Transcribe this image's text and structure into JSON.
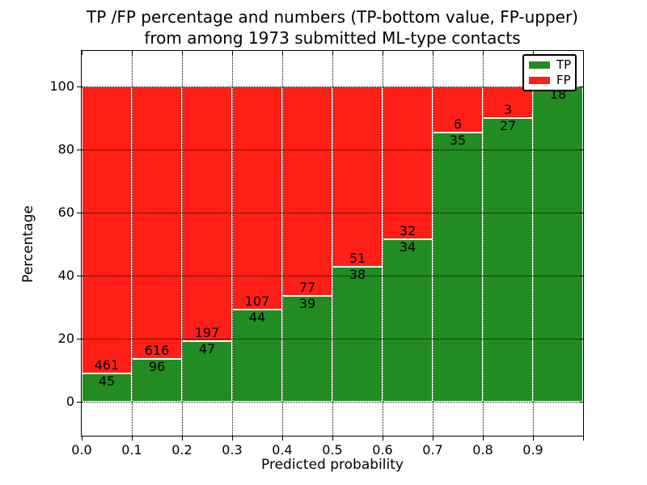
{
  "chart_data": {
    "type": "bar",
    "stacked": true,
    "normalized_to_percent": true,
    "title_line1": "TP /FP percentage and numbers (TP-bottom value, FP-upper)",
    "title_line2": "from among 1973 submitted ML-type contacts",
    "xlabel": "Predicted probability",
    "ylabel": "Percentage",
    "x_tick_labels": [
      "0.0",
      "0.1",
      "0.2",
      "0.3",
      "0.4",
      "0.5",
      "0.6",
      "0.7",
      "0.8",
      "0.9"
    ],
    "y_ticks": [
      "0",
      "20",
      "40",
      "60",
      "80",
      "100"
    ],
    "ylim_hint": [
      -11,
      111
    ],
    "grid": "dotted",
    "legend_position": "upper right",
    "total_contacts": 1973,
    "bins": [
      "0.0-0.1",
      "0.1-0.2",
      "0.2-0.3",
      "0.3-0.4",
      "0.4-0.5",
      "0.5-0.6",
      "0.6-0.7",
      "0.7-0.8",
      "0.8-0.9",
      "0.9-1.0"
    ],
    "series": [
      {
        "name": "TP",
        "color": "#228B22",
        "counts": [
          45,
          96,
          47,
          44,
          39,
          38,
          34,
          35,
          27,
          18
        ],
        "percent": [
          8.89,
          13.48,
          19.26,
          29.14,
          33.62,
          42.7,
          51.52,
          85.37,
          90.0,
          100.0
        ]
      },
      {
        "name": "FP",
        "color": "#FF1F17",
        "counts": [
          461,
          616,
          197,
          107,
          77,
          51,
          32,
          6,
          3,
          null
        ],
        "percent": [
          91.11,
          86.52,
          80.74,
          70.86,
          66.38,
          57.3,
          48.48,
          14.63,
          10.0,
          0.0
        ]
      }
    ]
  },
  "legend": {
    "items": [
      {
        "label": "TP",
        "color": "#228B22"
      },
      {
        "label": "FP",
        "color": "#FF1F17"
      }
    ]
  }
}
